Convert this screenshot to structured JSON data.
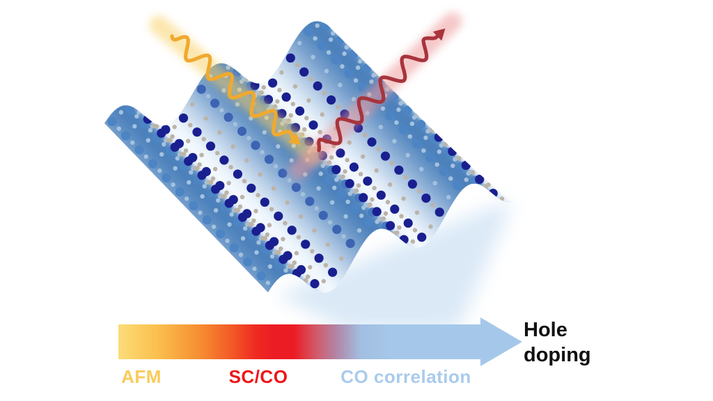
{
  "figure": {
    "icons": {
      "incident_photon": "wavy-arrow-down-right",
      "scattered_photon": "wavy-arrow-up-right",
      "doping_axis": "gradient-arrow-right"
    },
    "sheet": {
      "stripe_dark": "#4B80BB",
      "stripe_light": "#F3F9FE",
      "dot_navy": "#1A1F8F",
      "dot_blue": "#4C84C4",
      "dot_gray": "#BCB3A8",
      "dot_pale": "#A3C2E0",
      "fan_glow": "#CFE2F4"
    },
    "photons": {
      "incident_color": "#F0A92F",
      "incident_glow": "#F9D26B",
      "scattered_color": "#A8343C",
      "scattered_glow": "#EE9A9B"
    }
  },
  "axis": {
    "title": "Hole doping",
    "title_color": "#111111",
    "regions": [
      {
        "label": "AFM",
        "color": "#F9CB5B"
      },
      {
        "label": "SC/CO",
        "color": "#EE1418"
      },
      {
        "label": "CO correlation",
        "color": "#A9CBEC"
      }
    ],
    "gradient_stops": [
      {
        "offset": 0.0,
        "color": "#FCDC78"
      },
      {
        "offset": 0.1,
        "color": "#FABE4D"
      },
      {
        "offset": 0.2,
        "color": "#F68F32"
      },
      {
        "offset": 0.28,
        "color": "#F35A26"
      },
      {
        "offset": 0.34,
        "color": "#EF2A21"
      },
      {
        "offset": 0.385,
        "color": "#EC1C24"
      },
      {
        "offset": 0.435,
        "color": "#EC1C24"
      },
      {
        "offset": 0.49,
        "color": "#D15A69"
      },
      {
        "offset": 0.545,
        "color": "#AF8AAC"
      },
      {
        "offset": 0.6,
        "color": "#A2BEE1"
      },
      {
        "offset": 0.68,
        "color": "#A5C8EA"
      },
      {
        "offset": 1.0,
        "color": "#A5C8EA"
      }
    ]
  }
}
